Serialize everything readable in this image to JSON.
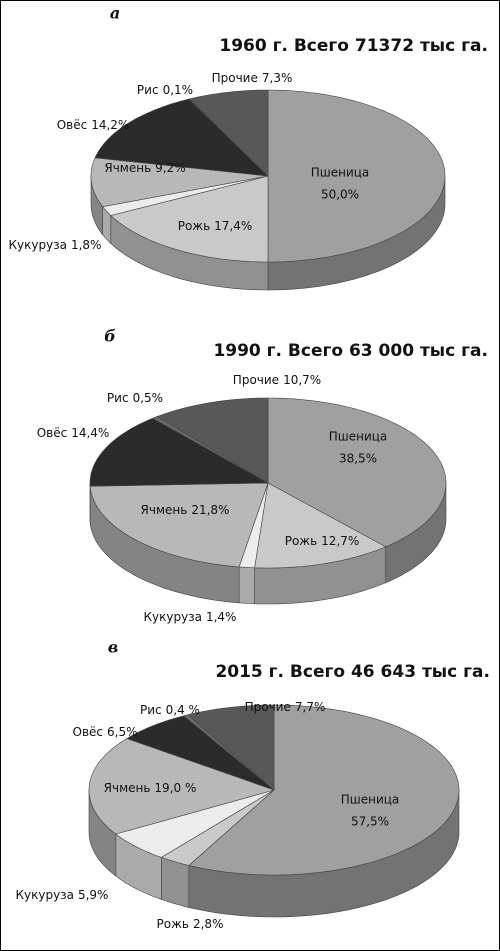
{
  "chart_data": [
    {
      "type": "pie3d",
      "panel": "а",
      "title": "1960 г. Всего 71372 тыс га.",
      "categories": [
        "Пшеница",
        "Рожь",
        "Кукуруза",
        "Ячмень",
        "Овёс",
        "Рис",
        "Прочие"
      ],
      "values": [
        50.0,
        17.4,
        1.8,
        9.2,
        14.2,
        0.1,
        7.3
      ],
      "value_labels": [
        "50,0%",
        "17,4%",
        "1,8%",
        "9,2%",
        "14,2%",
        "0,1%",
        "7,3%"
      ],
      "colors": [
        "#a0a0a0",
        "#c9c9c9",
        "#ececec",
        "#b8b8b8",
        "#2b2b2b",
        "#6a6a6a",
        "#585858"
      ]
    },
    {
      "type": "pie3d",
      "panel": "б",
      "title": "1990 г. Всего 63 000 тыс га.",
      "categories": [
        "Пшеница",
        "Рожь",
        "Кукуруза",
        "Ячмень",
        "Овёс",
        "Рис",
        "Прочие"
      ],
      "values": [
        38.5,
        12.7,
        1.4,
        21.8,
        14.4,
        0.5,
        10.7
      ],
      "value_labels": [
        "38,5%",
        "12,7%",
        "1,4%",
        "21,8%",
        "14,4%",
        "0,5%",
        "10,7%"
      ],
      "colors": [
        "#a0a0a0",
        "#c9c9c9",
        "#ececec",
        "#b8b8b8",
        "#2b2b2b",
        "#6a6a6a",
        "#585858"
      ]
    },
    {
      "type": "pie3d",
      "panel": "в",
      "title": "2015 г. Всего 46 643 тыс га.",
      "categories": [
        "Пшеница",
        "Рожь",
        "Кукуруза",
        "Ячмень",
        "Овёс",
        "Рис",
        "Прочие"
      ],
      "values": [
        57.5,
        2.8,
        5.9,
        19.0,
        6.5,
        0.4,
        7.7
      ],
      "value_labels": [
        "57,5%",
        "2,8%",
        "5,9%",
        "19,0 %",
        "6,5%",
        "0,4 %",
        "7,7%"
      ],
      "colors": [
        "#a0a0a0",
        "#c9c9c9",
        "#ececec",
        "#b8b8b8",
        "#2b2b2b",
        "#6a6a6a",
        "#585858"
      ]
    }
  ]
}
